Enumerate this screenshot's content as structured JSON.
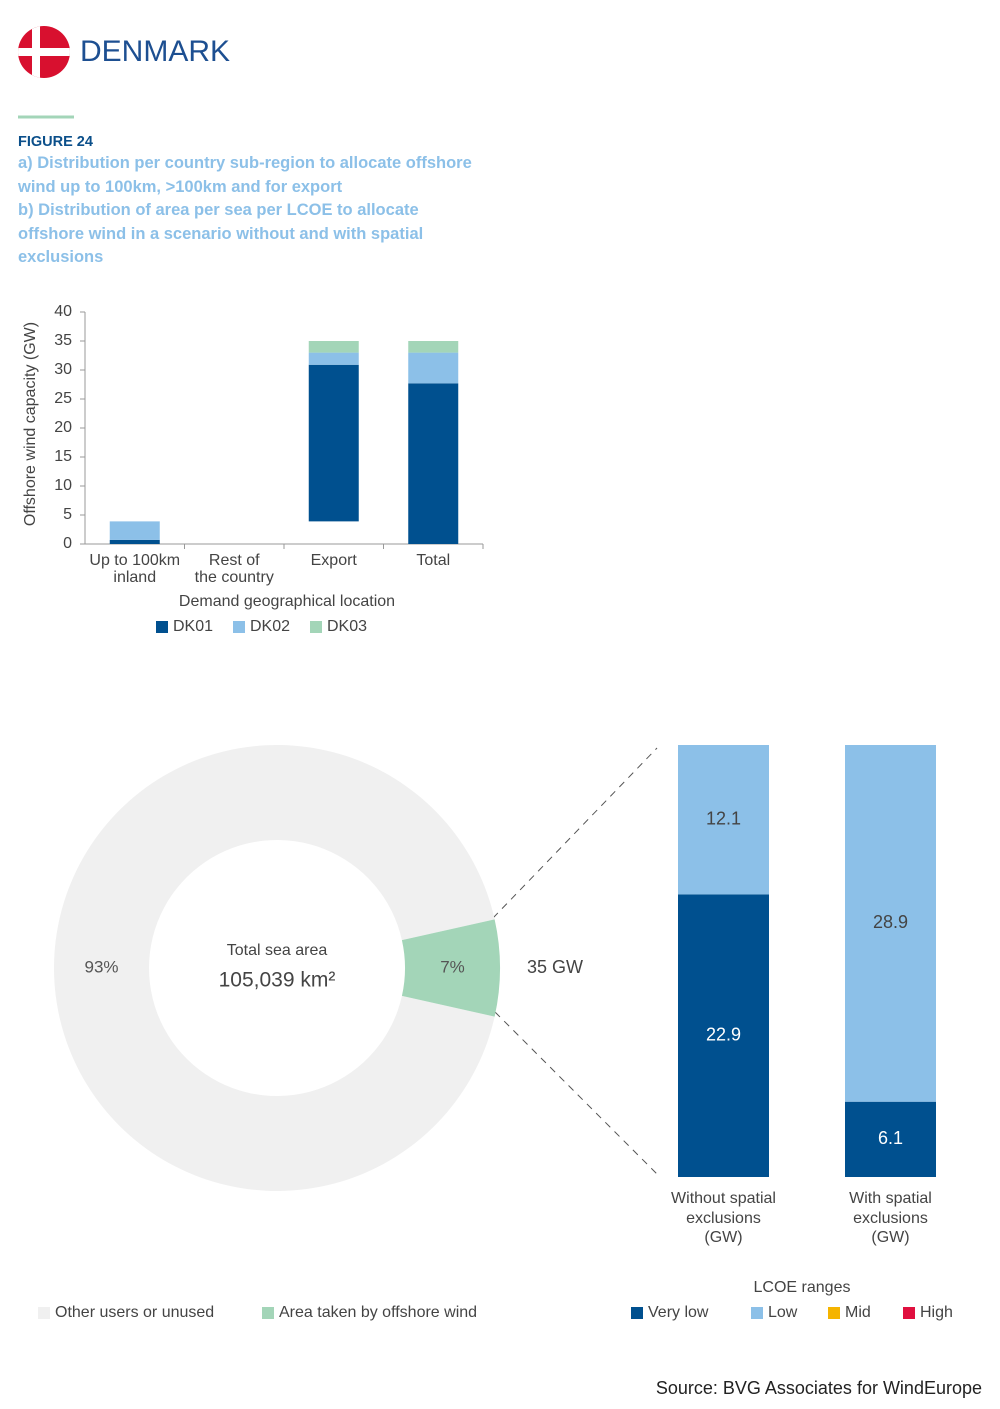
{
  "header": {
    "country": "DENMARK"
  },
  "figure": {
    "label": "FIGURE 24",
    "caption_a": "a) Distribution per country sub-region to allocate offshore wind up to 100km, >100km and for export",
    "caption_b": "b) Distribution of area per sea per LCOE to allocate offshore wind in a scenario without and with spatial exclusions"
  },
  "chart_data": [
    {
      "type": "waterfall",
      "x_label": "Demand geographical location",
      "y_label": "Offshore wind capacity (GW)",
      "categories": [
        "Up to 100km\ninland",
        "Rest of\nthe country",
        "Export",
        "Total"
      ],
      "series": [
        {
          "name": "DK01",
          "color": "#00508f",
          "values": [
            0.7,
            0,
            27,
            27.7
          ]
        },
        {
          "name": "DK02",
          "color": "#8cc0e8",
          "values": [
            3.2,
            0,
            2.1,
            5.3
          ]
        },
        {
          "name": "DK03",
          "color": "#a3d5b8",
          "values": [
            0,
            0,
            2,
            2
          ]
        }
      ],
      "ylim": [
        0,
        40
      ],
      "yticks": [
        0,
        5,
        10,
        15,
        20,
        25,
        30,
        35,
        40
      ]
    },
    {
      "type": "donut",
      "center_label": "Total sea area",
      "center_value": "105,039 km²",
      "annotation": "35 GW",
      "categories": [
        "Other users or unused",
        "Area taken by offshore wind"
      ],
      "values": [
        93,
        7
      ],
      "value_labels": [
        "93%",
        "7%"
      ],
      "colors": [
        "#f0f0f0",
        "#a3d5b8"
      ]
    },
    {
      "type": "stacked_bar",
      "legend_title": "LCOE ranges",
      "categories": [
        "Without spatial\nexclusions\n(GW)",
        "With spatial\nexclusions\n(GW)"
      ],
      "series": [
        {
          "name": "Very low",
          "color": "#00508f",
          "values": [
            22.9,
            6.1
          ]
        },
        {
          "name": "Low",
          "color": "#8cc0e8",
          "values": [
            12.1,
            28.9
          ]
        },
        {
          "name": "Mid",
          "color": "#f5b400",
          "values": [
            0,
            0
          ]
        },
        {
          "name": "High",
          "color": "#e0103f",
          "values": [
            0,
            0
          ]
        }
      ]
    }
  ],
  "source": "Source: BVG Associates for WindEurope"
}
